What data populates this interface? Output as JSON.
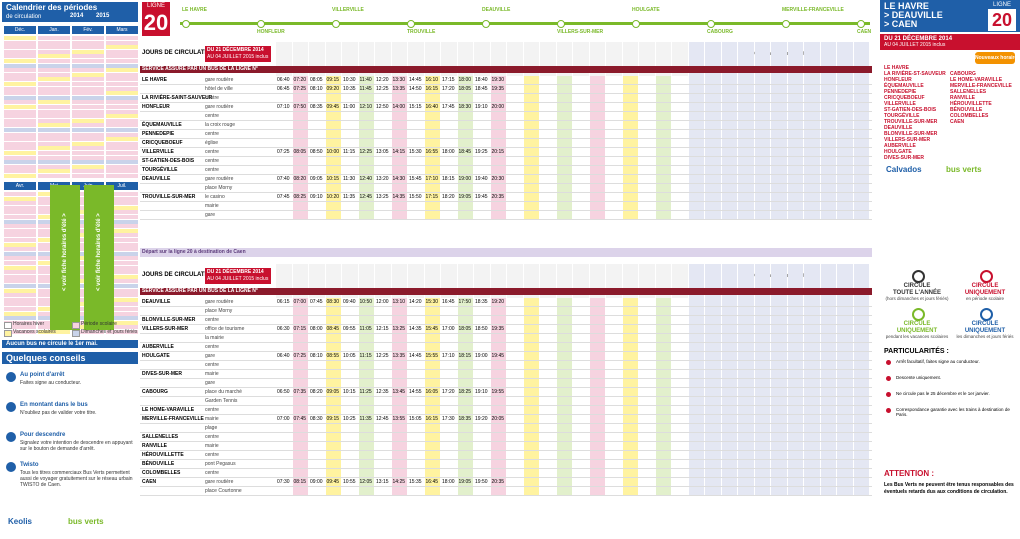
{
  "calendar": {
    "title": "Calendrier des périodes",
    "subtitle": "de circulation",
    "years": [
      "2014",
      "2015"
    ],
    "months": [
      "Déc.",
      "Jan.",
      "Fév.",
      "Mars",
      "Avr.",
      "Mai",
      "Juin",
      "Juil."
    ],
    "summer_note": "< voir fiche horaires d'été >",
    "legend": [
      "Horaires hiver",
      "Période scolaire",
      "Vacances scolaires",
      "Dimanches et jours fériés"
    ],
    "no_service": "Aucun bus ne circule le 1er mai."
  },
  "tips": {
    "title": "Quelques conseils",
    "items": [
      {
        "title": "Au point d'arrêt",
        "text": "Faites signe au conducteur."
      },
      {
        "title": "En montant dans le bus",
        "text": "N'oubliez pas de valider votre titre."
      },
      {
        "title": "Pour descendre",
        "text": "Signalez votre intention de descendre en appuyant sur le bouton de demande d'arrêt."
      },
      {
        "title": "Twisto",
        "text": "Tous les titres commerciaux Bus Verts permettent aussi de voyager gratuitement sur le réseau urbain TWISTO de Caen."
      }
    ],
    "logos": [
      "Keolis",
      "bus verts"
    ]
  },
  "route": {
    "line_label": "LIGNE",
    "line_number": "20",
    "stops": [
      "LE HAVRE",
      "HONFLEUR",
      "VILLERVILLE",
      "TROUVILLE",
      "DEAUVILLE",
      "VILLERS-SUR-MER",
      "HOULGATE",
      "CABOURG",
      "MERVILLE-FRANCEVILLE",
      "CAEN"
    ]
  },
  "tables": [
    {
      "days_label": "JOURS DE CIRCULATION",
      "period": "DU 21 DÉCEMBRE 2014",
      "period2": "AU 04 JUILLET 2015 inclus",
      "service_label": "SERVICE ASSURÉ PAR UN BUS DE LA LIGNE N°",
      "sunday_label": "Dimanches et jours fériés",
      "rows": [
        {
          "town": "LE HAVRE",
          "stop": "gare routière",
          "times": [
            "06:40",
            "07:20",
            "08:05",
            "09:15",
            "10:30",
            "11:40",
            "12:20",
            "13:30",
            "14:45",
            "16:10",
            "17:15",
            "18:00",
            "18:40",
            "19:30"
          ]
        },
        {
          "stop": "hôtel de ville",
          "times": [
            "06:45",
            "07:25",
            "08:10",
            "09:20",
            "10:35",
            "11:45",
            "12:25",
            "13:35",
            "14:50",
            "16:15",
            "17:20",
            "18:05",
            "18:45",
            "19:35"
          ]
        },
        {
          "town": "LA RIVIÈRE-SAINT-SAUVEUR",
          "stop": "centre"
        },
        {
          "town": "HONFLEUR",
          "stop": "gare routière",
          "times": [
            "07:10",
            "07:50",
            "08:35",
            "09:45",
            "11:00",
            "12:10",
            "12:50",
            "14:00",
            "15:15",
            "16:40",
            "17:45",
            "18:30",
            "19:10",
            "20:00"
          ]
        },
        {
          "stop": "centre"
        },
        {
          "town": "ÉQUEMAUVILLE",
          "stop": "la croix rouge"
        },
        {
          "town": "PENNEDEPIE",
          "stop": "centre"
        },
        {
          "town": "CRICQUEBOEUF",
          "stop": "église"
        },
        {
          "town": "VILLERVILLE",
          "stop": "centre",
          "times": [
            "07:25",
            "08:05",
            "08:50",
            "10:00",
            "11:15",
            "12:25",
            "13:05",
            "14:15",
            "15:30",
            "16:55",
            "18:00",
            "18:45",
            "19:25",
            "20:15"
          ]
        },
        {
          "town": "ST-GATIEN-DES-BOIS",
          "stop": "centre"
        },
        {
          "town": "TOURGÉVILLE",
          "stop": "centre"
        },
        {
          "town": "DEAUVILLE",
          "stop": "gare routière",
          "times": [
            "07:40",
            "08:20",
            "09:05",
            "10:15",
            "11:30",
            "12:40",
            "13:20",
            "14:30",
            "15:45",
            "17:10",
            "18:15",
            "19:00",
            "19:40",
            "20:30"
          ]
        },
        {
          "stop": "place Morny"
        },
        {
          "town": "TROUVILLE-SUR-MER",
          "stop": "le casino",
          "times": [
            "07:45",
            "08:25",
            "09:10",
            "10:20",
            "11:35",
            "12:45",
            "13:25",
            "14:35",
            "15:50",
            "17:15",
            "18:20",
            "19:05",
            "19:45",
            "20:35"
          ]
        },
        {
          "stop": "mairie"
        },
        {
          "stop": "gare"
        }
      ]
    },
    {
      "days_label": "JOURS DE CIRCULATION",
      "period": "DU 21 DÉCEMBRE 2014",
      "period2": "AU 04 JUILLET 2015 inclus",
      "service_label": "SERVICE ASSURÉ PAR UN BUS DE LA LIGNE N°",
      "sunday_label": "Dimanches et jours fériés",
      "rows": [
        {
          "town": "DEAUVILLE",
          "stop": "gare routière",
          "times": [
            "06:15",
            "07:00",
            "07:45",
            "08:30",
            "09:40",
            "10:50",
            "12:00",
            "13:10",
            "14:20",
            "15:30",
            "16:45",
            "17:50",
            "18:35",
            "19:20"
          ]
        },
        {
          "stop": "place Morny"
        },
        {
          "town": "BLONVILLE-SUR-MER",
          "stop": "centre"
        },
        {
          "town": "VILLERS-SUR-MER",
          "stop": "office de tourisme",
          "times": [
            "06:30",
            "07:15",
            "08:00",
            "08:45",
            "09:55",
            "11:05",
            "12:15",
            "13:25",
            "14:35",
            "15:45",
            "17:00",
            "18:05",
            "18:50",
            "19:35"
          ]
        },
        {
          "stop": "la mairie"
        },
        {
          "town": "AUBERVILLE",
          "stop": "centre"
        },
        {
          "town": "HOULGATE",
          "stop": "gare",
          "times": [
            "06:40",
            "07:25",
            "08:10",
            "08:55",
            "10:05",
            "11:15",
            "12:25",
            "13:35",
            "14:45",
            "15:55",
            "17:10",
            "18:15",
            "19:00",
            "19:45"
          ]
        },
        {
          "stop": "centre"
        },
        {
          "town": "DIVES-SUR-MER",
          "stop": "mairie"
        },
        {
          "stop": "gare"
        },
        {
          "town": "CABOURG",
          "stop": "place du marché",
          "times": [
            "06:50",
            "07:35",
            "08:20",
            "09:05",
            "10:15",
            "11:25",
            "12:35",
            "13:45",
            "14:55",
            "16:05",
            "17:20",
            "18:25",
            "19:10",
            "19:55"
          ]
        },
        {
          "stop": "Garden Tennis"
        },
        {
          "town": "LE HOME-VARAVILLE",
          "stop": "centre"
        },
        {
          "town": "MERVILLE-FRANCEVILLE",
          "stop": "mairie",
          "times": [
            "07:00",
            "07:45",
            "08:30",
            "09:15",
            "10:25",
            "11:35",
            "12:45",
            "13:55",
            "15:05",
            "16:15",
            "17:30",
            "18:35",
            "19:20",
            "20:05"
          ]
        },
        {
          "stop": "plage"
        },
        {
          "town": "SALLENELLES",
          "stop": "centre"
        },
        {
          "town": "RANVILLE",
          "stop": "mairie"
        },
        {
          "town": "HÉROUVILLETTE",
          "stop": "centre"
        },
        {
          "town": "BÉNOUVILLE",
          "stop": "pont Pegasus"
        },
        {
          "town": "COLOMBELLES",
          "stop": "centre"
        },
        {
          "town": "CAEN",
          "stop": "gare routière",
          "times": [
            "07:30",
            "08:15",
            "09:00",
            "09:45",
            "10:55",
            "12:05",
            "13:15",
            "14:25",
            "15:35",
            "16:45",
            "18:00",
            "19:05",
            "19:50",
            "20:35"
          ]
        },
        {
          "stop": "place Courtonne"
        }
      ]
    }
  ],
  "connection_note": "Départ sur la ligne 20 à destination de Caen",
  "sidebar": {
    "title": "LE HAVRE",
    "title2": "> DEAUVILLE",
    "title3": "> CAEN",
    "line_label": "LIGNE",
    "line_number": "20",
    "period": "DU 21 DÉCEMBRE 2014",
    "period2": "AU 04 JUILLET 2015 inclus",
    "badge": "Nouveaux horaires",
    "towns_left": [
      "LE HAVRE",
      "LA RIVIÈRE-ST-SAUVEUR",
      "HONFLEUR",
      "ÉQUEMAUVILLE",
      "PENNEDEPIE",
      "CRICQUEBOEUF",
      "VILLERVILLE",
      "ST-GATIEN-DES-BOIS",
      "TOURGÉVILLE",
      "TROUVILLE-SUR-MER",
      "DEAUVILLE",
      "BLONVILLE-SUR-MER",
      "VILLERS-SUR-MER",
      "AUBERVILLE",
      "HOULGATE",
      "DIVES-SUR-MER"
    ],
    "towns_right": [
      "CABOURG",
      "LE HOME-VARAVILLE",
      "MERVILLE-FRANCEVILLE",
      "SALLENELLES",
      "RANVILLE",
      "HÉROUVILLETTE",
      "BÉNOUVILLE",
      "COLOMBELLES",
      "CAEN"
    ],
    "logos": [
      "Calvados",
      "bus verts"
    ]
  },
  "legend": [
    {
      "title": "CIRCULE",
      "emph": "TOUTE L'ANNÉE",
      "note": "(hors dimanches et jours fériés)"
    },
    {
      "title": "CIRCULE",
      "emph": "UNIQUEMENT",
      "note": "en période scolaire"
    },
    {
      "title": "CIRCULE",
      "emph": "UNIQUEMENT",
      "note": "pendant les vacances scolaires"
    },
    {
      "title": "CIRCULE",
      "emph": "UNIQUEMENT",
      "note": "les dimanches et jours fériés"
    }
  ],
  "particularities": {
    "title": "PARTICULARITÉS :",
    "items": [
      "Arrêt facultatif, faites signe au conducteur.",
      "Descente uniquement.",
      "Ne circule pas le 25 décembre et le 1er janvier.",
      "Correspondance garantie avec les trains à destination de Paris."
    ]
  },
  "attention": {
    "title": "ATTENTION :",
    "text": "Les Bus Verts ne peuvent être tenus responsables des éventuels retards dus aux conditions de circulation."
  }
}
